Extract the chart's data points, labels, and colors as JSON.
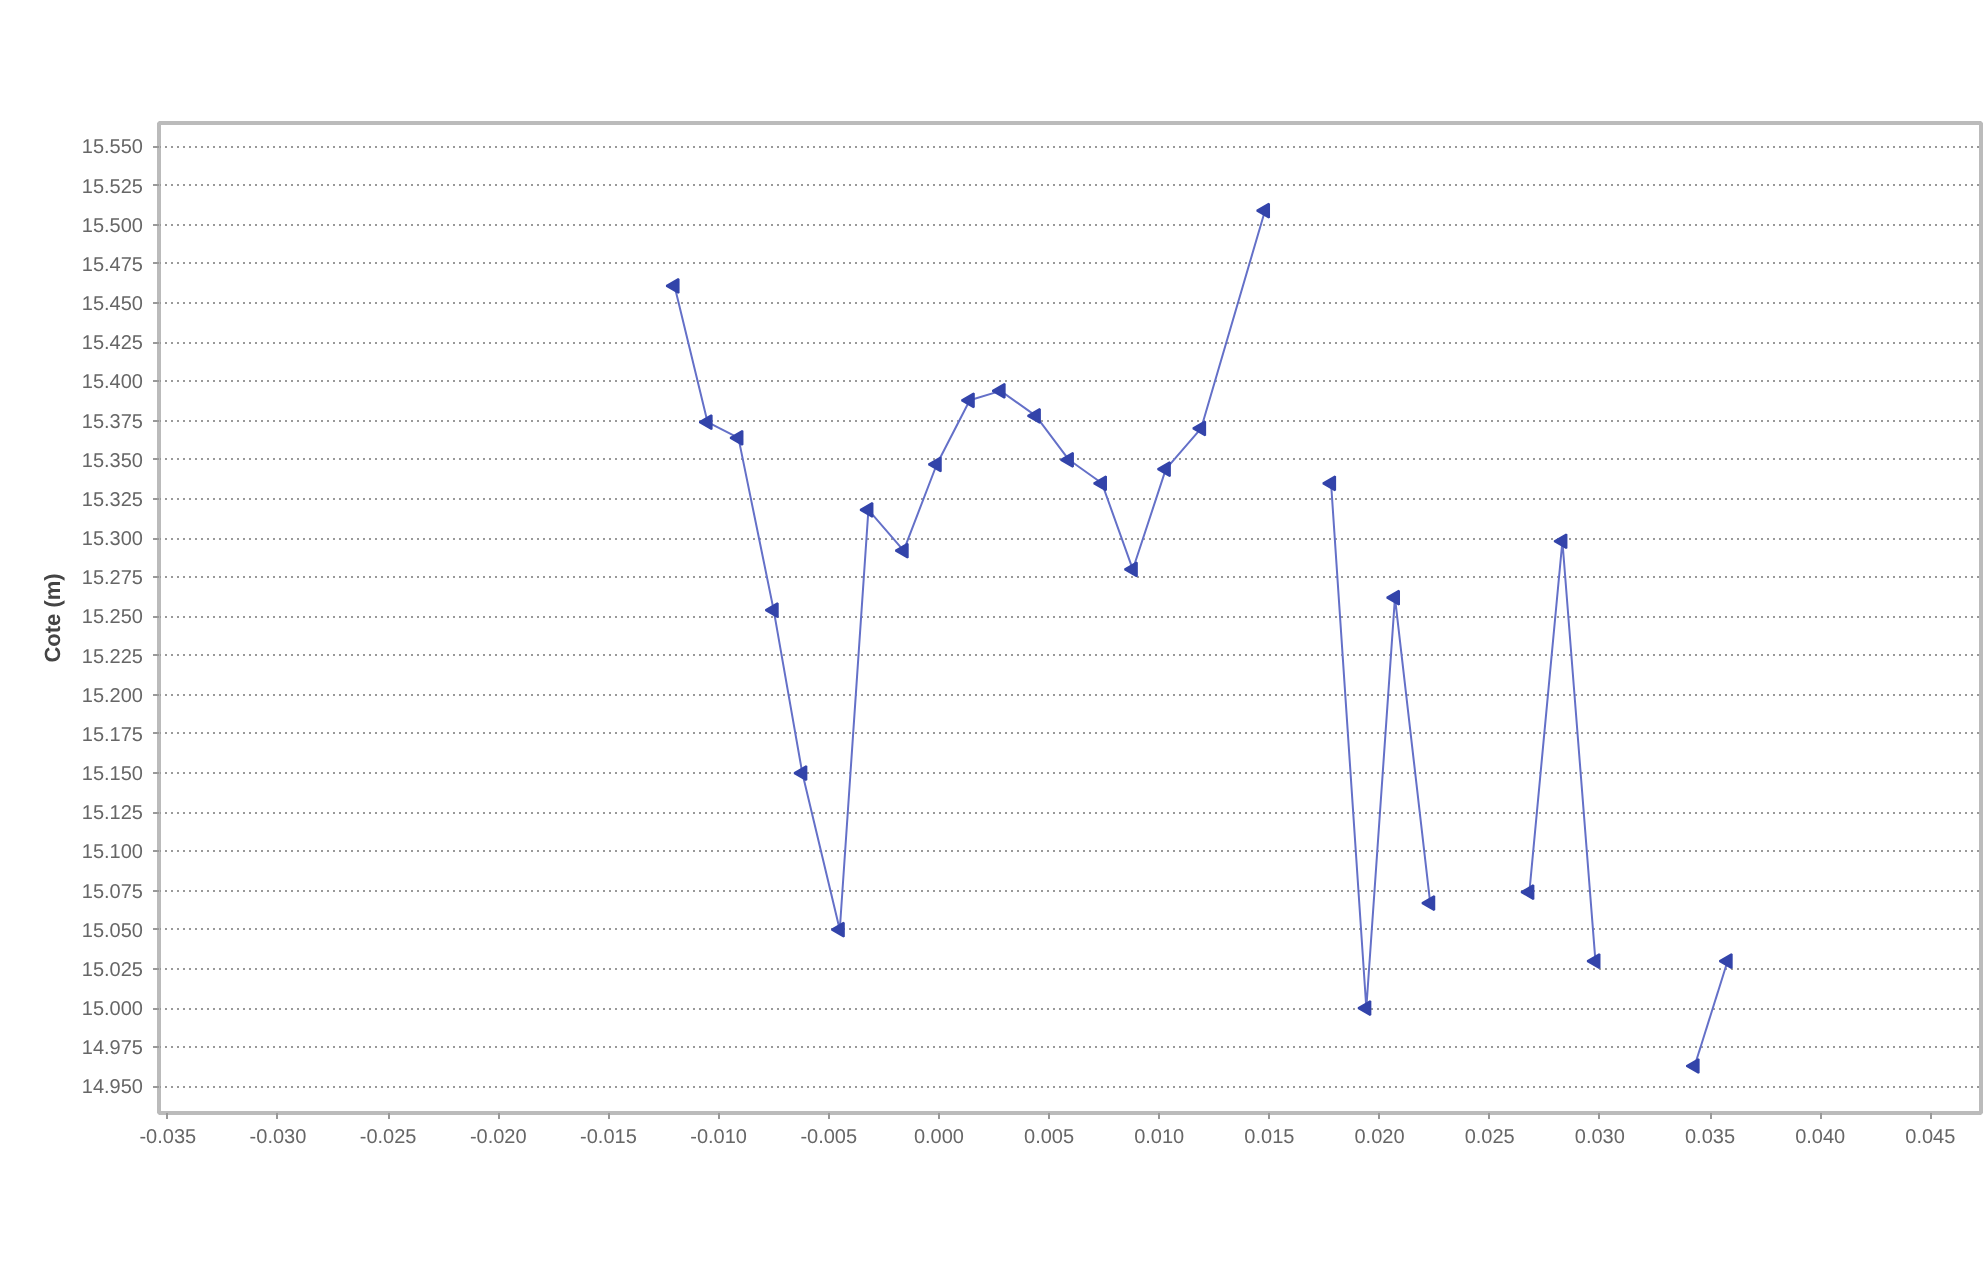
{
  "chart_data": {
    "type": "line",
    "ylabel": "Cote (m)",
    "series": [
      {
        "color": "#6470c8",
        "x": [
          -0.012,
          -0.0105,
          -0.0091,
          -0.0075,
          -0.0062,
          -0.0045,
          -0.0032,
          -0.0016,
          -0.0001,
          0.0014,
          0.0028,
          0.0044,
          0.0059,
          0.0074,
          0.0088,
          0.0103,
          0.0119,
          0.0148
        ],
        "values": [
          15.461,
          15.374,
          15.364,
          15.254,
          15.15,
          15.05,
          15.318,
          15.292,
          15.347,
          15.388,
          15.394,
          15.378,
          15.35,
          15.335,
          15.28,
          15.344,
          15.37,
          15.509
        ]
      },
      {
        "color": "#6470c8",
        "x": [
          0.0178,
          0.0194,
          0.0207,
          0.0223
        ],
        "values": [
          15.335,
          15.0,
          15.262,
          15.067
        ]
      },
      {
        "color": "#6470c8",
        "x": [
          0.0268,
          0.0283,
          0.0298
        ],
        "values": [
          15.074,
          15.298,
          15.03
        ]
      },
      {
        "color": "#6470c8",
        "x": [
          0.0343,
          0.0358
        ],
        "values": [
          14.963,
          15.03
        ]
      }
    ],
    "marker": "triangle",
    "grid": "y",
    "xlim": [
      -0.0354,
      0.0473
    ],
    "ylim": [
      14.933,
      15.565
    ],
    "xticks": [
      {
        "value": -0.035,
        "label": "-0.035"
      },
      {
        "value": -0.03,
        "label": "-0.030"
      },
      {
        "value": -0.025,
        "label": "-0.025"
      },
      {
        "value": -0.02,
        "label": "-0.020"
      },
      {
        "value": -0.015,
        "label": "-0.015"
      },
      {
        "value": -0.01,
        "label": "-0.010"
      },
      {
        "value": -0.005,
        "label": "-0.005"
      },
      {
        "value": 0,
        "label": "0.000"
      },
      {
        "value": 0.005,
        "label": "0.005"
      },
      {
        "value": 0.01,
        "label": "0.010"
      },
      {
        "value": 0.015,
        "label": "0.015"
      },
      {
        "value": 0.02,
        "label": "0.020"
      },
      {
        "value": 0.025,
        "label": "0.025"
      },
      {
        "value": 0.03,
        "label": "0.030"
      },
      {
        "value": 0.035,
        "label": "0.035"
      },
      {
        "value": 0.04,
        "label": "0.040"
      },
      {
        "value": 0.045,
        "label": "0.045"
      }
    ],
    "yticks": [
      {
        "value": 14.95,
        "label": "14.950"
      },
      {
        "value": 14.975,
        "label": "14.975"
      },
      {
        "value": 15.0,
        "label": "15.000"
      },
      {
        "value": 15.025,
        "label": "15.025"
      },
      {
        "value": 15.05,
        "label": "15.050"
      },
      {
        "value": 15.075,
        "label": "15.075"
      },
      {
        "value": 15.1,
        "label": "15.100"
      },
      {
        "value": 15.125,
        "label": "15.125"
      },
      {
        "value": 15.15,
        "label": "15.150"
      },
      {
        "value": 15.175,
        "label": "15.175"
      },
      {
        "value": 15.2,
        "label": "15.200"
      },
      {
        "value": 15.225,
        "label": "15.225"
      },
      {
        "value": 15.25,
        "label": "15.250"
      },
      {
        "value": 15.275,
        "label": "15.275"
      },
      {
        "value": 15.3,
        "label": "15.300"
      },
      {
        "value": 15.325,
        "label": "15.325"
      },
      {
        "value": 15.35,
        "label": "15.350"
      },
      {
        "value": 15.375,
        "label": "15.375"
      },
      {
        "value": 15.4,
        "label": "15.400"
      },
      {
        "value": 15.425,
        "label": "15.425"
      },
      {
        "value": 15.45,
        "label": "15.450"
      },
      {
        "value": 15.475,
        "label": "15.475"
      },
      {
        "value": 15.5,
        "label": "15.500"
      },
      {
        "value": 15.525,
        "label": "15.525"
      },
      {
        "value": 15.55,
        "label": "15.550"
      }
    ]
  }
}
